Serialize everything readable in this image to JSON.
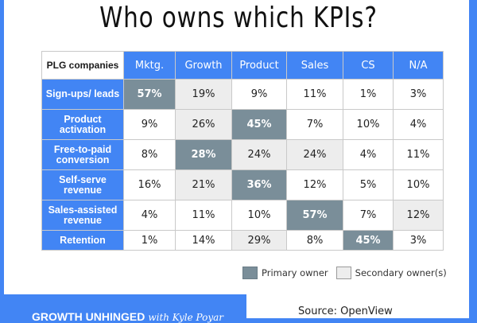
{
  "title": "Who owns which KPIs?",
  "table": {
    "corner_label": "PLG companies",
    "columns": [
      "Mktg.",
      "Growth",
      "Product",
      "Sales",
      "CS",
      "N/A"
    ],
    "rows": [
      {
        "label": "Sign-ups/ leads",
        "values": [
          "57%",
          "19%",
          "9%",
          "11%",
          "1%",
          "3%"
        ],
        "styles": [
          "primary",
          "secondary",
          "none",
          "none",
          "none",
          "none"
        ]
      },
      {
        "label": "Product activation",
        "values": [
          "9%",
          "26%",
          "45%",
          "7%",
          "10%",
          "4%"
        ],
        "styles": [
          "none",
          "secondary",
          "primary",
          "none",
          "none",
          "none"
        ]
      },
      {
        "label": "Free-to-paid conversion",
        "values": [
          "8%",
          "28%",
          "24%",
          "24%",
          "4%",
          "11%"
        ],
        "styles": [
          "none",
          "primary",
          "secondary",
          "secondary",
          "none",
          "none"
        ]
      },
      {
        "label": "Self-serve revenue",
        "values": [
          "16%",
          "21%",
          "36%",
          "12%",
          "5%",
          "10%"
        ],
        "styles": [
          "none",
          "secondary",
          "primary",
          "none",
          "none",
          "none"
        ]
      },
      {
        "label": "Sales-assisted revenue",
        "values": [
          "4%",
          "11%",
          "10%",
          "57%",
          "7%",
          "12%"
        ],
        "styles": [
          "none",
          "none",
          "none",
          "primary",
          "none",
          "secondary"
        ]
      },
      {
        "label": "Retention",
        "values": [
          "1%",
          "14%",
          "29%",
          "8%",
          "45%",
          "3%"
        ],
        "styles": [
          "none",
          "none",
          "secondary",
          "none",
          "primary",
          "none"
        ]
      }
    ]
  },
  "legend": {
    "primary_label": "Primary owner",
    "secondary_label": "Secondary owner(s)"
  },
  "colors": {
    "brand_blue": "#4285F4",
    "primary_cell": "#7A8E99",
    "secondary_cell": "#EDEDED"
  },
  "banner": {
    "bold": "GROWTH UNHINGED",
    "script": "with Kyle Poyar"
  },
  "source": "Source: OpenView",
  "chart_data": {
    "type": "heatmap",
    "title": "Who owns which KPIs?",
    "row_header": "PLG companies",
    "x": [
      "Mktg.",
      "Growth",
      "Product",
      "Sales",
      "CS",
      "N/A"
    ],
    "y": [
      "Sign-ups/leads",
      "Product activation",
      "Free-to-paid conversion",
      "Self-serve revenue",
      "Sales-assisted revenue",
      "Retention"
    ],
    "values": [
      [
        57,
        19,
        9,
        11,
        1,
        3
      ],
      [
        9,
        26,
        45,
        7,
        10,
        4
      ],
      [
        8,
        28,
        24,
        24,
        4,
        11
      ],
      [
        16,
        21,
        36,
        12,
        5,
        10
      ],
      [
        4,
        11,
        10,
        57,
        7,
        12
      ],
      [
        1,
        14,
        29,
        8,
        45,
        3
      ]
    ],
    "unit": "%",
    "legend": [
      "Primary owner",
      "Secondary owner(s)"
    ],
    "source": "OpenView"
  }
}
